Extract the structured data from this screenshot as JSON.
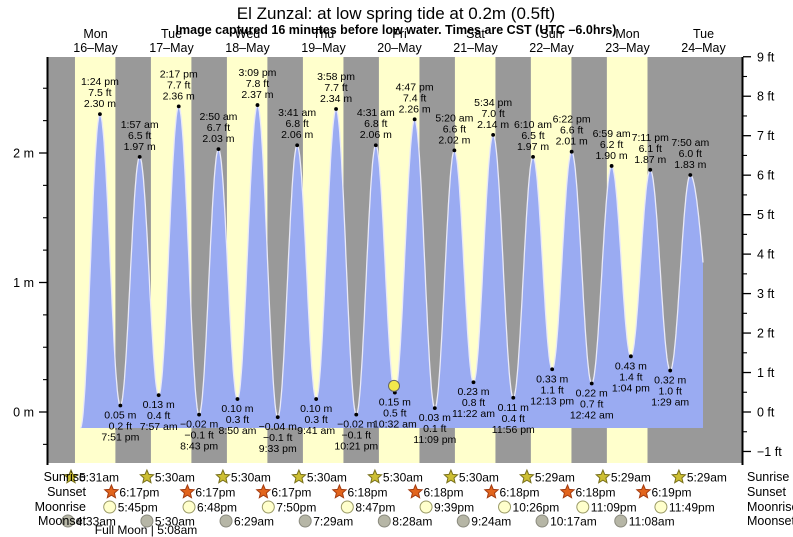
{
  "chart_data": {
    "type": "area",
    "title": "El Zunzal: at low  spring tide at 0.2m (0.5ft)",
    "subtitle": "Image captured 16 minutes before low water. Times are CST (UTC –6.0hrs)",
    "y_left": {
      "unit": "m",
      "major_ticks": [
        0,
        1,
        2
      ],
      "tick_suffix": " m"
    },
    "y_right": {
      "unit": "ft",
      "major_ticks": [
        -1,
        0,
        1,
        2,
        3,
        4,
        5,
        6,
        7,
        8,
        9
      ],
      "tick_suffix": " ft"
    },
    "row_labels": {
      "sunrise": "Sunrise",
      "sunset": "Sunset",
      "moonrise": "Moonrise",
      "moonset": "Moonset"
    },
    "full_moon": {
      "text": "Full Moon | 5:08am"
    },
    "days": [
      {
        "label": "Mon",
        "date": "16–May",
        "sunrise": "5:31am",
        "sunset": "6:17pm",
        "moonrise": "5:45pm",
        "moonset": "4:33am"
      },
      {
        "label": "Tue",
        "date": "17–May",
        "sunrise": "5:30am",
        "sunset": "6:17pm",
        "moonrise": "6:48pm",
        "moonset": "5:30am"
      },
      {
        "label": "Wed",
        "date": "18–May",
        "sunrise": "5:30am",
        "sunset": "6:17pm",
        "moonrise": "7:50pm",
        "moonset": "6:29am"
      },
      {
        "label": "Thu",
        "date": "19–May",
        "sunrise": "5:30am",
        "sunset": "6:18pm",
        "moonrise": "8:47pm",
        "moonset": "7:29am"
      },
      {
        "label": "Fri",
        "date": "20–May",
        "sunrise": "5:30am",
        "sunset": "6:18pm",
        "moonrise": "9:39pm",
        "moonset": "8:28am"
      },
      {
        "label": "Sat",
        "date": "21–May",
        "sunrise": "5:30am",
        "sunset": "6:18pm",
        "moonrise": "10:26pm",
        "moonset": "9:24am"
      },
      {
        "label": "Sun",
        "date": "22–May",
        "sunrise": "5:29am",
        "sunset": "6:18pm",
        "moonrise": "11:09pm",
        "moonset": "10:17am"
      },
      {
        "label": "Mon",
        "date": "23–May",
        "sunrise": "5:29am",
        "sunset": "6:19pm",
        "moonrise": "11:49pm",
        "moonset": "11:08am"
      },
      {
        "label": "Tue",
        "date": "24–May",
        "sunrise": "5:29am"
      }
    ],
    "tide_events": [
      {
        "day": 0,
        "type": "high",
        "time": "1:24 pm",
        "ft": "7.5 ft",
        "m": "2.30 m"
      },
      {
        "day": 0,
        "type": "low",
        "time": "7:51 pm",
        "ft": "0.2 ft",
        "m": "0.05 m"
      },
      {
        "day": 1,
        "type": "high",
        "time": "1:57 am",
        "ft": "6.5 ft",
        "m": "1.97 m"
      },
      {
        "day": 1,
        "type": "low",
        "time": "7:57 am",
        "ft": "0.4 ft",
        "m": "0.13 m"
      },
      {
        "day": 1,
        "type": "high",
        "time": "2:17 pm",
        "ft": "7.7 ft",
        "m": "2.36 m"
      },
      {
        "day": 1,
        "type": "low",
        "time": "8:43 pm",
        "ft": "−0.1 ft",
        "m": "−0.02 m"
      },
      {
        "day": 2,
        "type": "high",
        "time": "2:50 am",
        "ft": "6.7 ft",
        "m": "2.03 m"
      },
      {
        "day": 2,
        "type": "low",
        "time": "8:50 am",
        "ft": "0.3 ft",
        "m": "0.10 m"
      },
      {
        "day": 2,
        "type": "high",
        "time": "3:09 pm",
        "ft": "7.8 ft",
        "m": "2.37 m"
      },
      {
        "day": 2,
        "type": "low",
        "time": "9:33 pm",
        "ft": "−0.1 ft",
        "m": "−0.04 m"
      },
      {
        "day": 3,
        "type": "high",
        "time": "3:41 am",
        "ft": "6.8 ft",
        "m": "2.06 m"
      },
      {
        "day": 3,
        "type": "low",
        "time": "9:41 am",
        "ft": "0.3 ft",
        "m": "0.10 m"
      },
      {
        "day": 3,
        "type": "high",
        "time": "3:58 pm",
        "ft": "7.7 ft",
        "m": "2.34 m"
      },
      {
        "day": 3,
        "type": "low",
        "time": "10:21 pm",
        "ft": "−0.1 ft",
        "m": "−0.02 m"
      },
      {
        "day": 4,
        "type": "high",
        "time": "4:31 am",
        "ft": "6.8 ft",
        "m": "2.06 m"
      },
      {
        "day": 4,
        "type": "low",
        "time": "10:32 am",
        "ft": "0.5 ft",
        "m": "0.15 m"
      },
      {
        "day": 4,
        "type": "high",
        "time": "4:47 pm",
        "ft": "7.4 ft",
        "m": "2.26 m"
      },
      {
        "day": 4,
        "type": "low",
        "time": "11:09 pm",
        "ft": "0.1 ft",
        "m": "0.03 m"
      },
      {
        "day": 5,
        "type": "high",
        "time": "5:20 am",
        "ft": "6.6 ft",
        "m": "2.02 m"
      },
      {
        "day": 5,
        "type": "low",
        "time": "11:22 am",
        "ft": "0.8 ft",
        "m": "0.23 m"
      },
      {
        "day": 5,
        "type": "high",
        "time": "5:34 pm",
        "ft": "7.0 ft",
        "m": "2.14 m"
      },
      {
        "day": 5,
        "type": "low",
        "time": "11:56 pm",
        "ft": "0.4 ft",
        "m": "0.11 m"
      },
      {
        "day": 6,
        "type": "high",
        "time": "6:10 am",
        "ft": "6.5 ft",
        "m": "1.97 m"
      },
      {
        "day": 6,
        "type": "low",
        "time": "12:13 pm",
        "ft": "1.1 ft",
        "m": "0.33 m"
      },
      {
        "day": 6,
        "type": "high",
        "time": "6:22 pm",
        "ft": "6.6 ft",
        "m": "2.01 m"
      },
      {
        "day": 7,
        "type": "low",
        "time": "12:42 am",
        "ft": "0.7 ft",
        "m": "0.22 m"
      },
      {
        "day": 7,
        "type": "high",
        "time": "6:59 am",
        "ft": "6.2 ft",
        "m": "1.90 m"
      },
      {
        "day": 7,
        "type": "low",
        "time": "1:04 pm",
        "ft": "1.4 ft",
        "m": "0.43 m"
      },
      {
        "day": 7,
        "type": "high",
        "time": "7:11 pm",
        "ft": "6.1 ft",
        "m": "1.87 m"
      },
      {
        "day": 8,
        "type": "low",
        "time": "1:29 am",
        "ft": "1.0 ft",
        "m": "0.32 m"
      },
      {
        "day": 8,
        "type": "high",
        "time": "7:50 am",
        "ft": "6.0 ft",
        "m": "1.83 m"
      }
    ],
    "current_time_marker": {
      "day": 4,
      "time": "10:16 am"
    },
    "colors": {
      "night_band": "#999999",
      "day_band": "#ffffcc",
      "tide_fill": "#9aabf2",
      "tide_edge": "#e9e9f7",
      "day_label_red": "#e7342a",
      "marker_yellow": "#f2e84b",
      "sunrise_star": "#cdbf33",
      "sunrise_star_edge": "#79711d",
      "sunset_star": "#e2641c",
      "sunset_star_edge": "#a33b10",
      "moonrise_circle": "#ffffcc",
      "moonrise_circle_edge": "#999966",
      "moonset_circle": "#b6b6a6",
      "moonset_circle_edge": "#8a8a7e"
    }
  }
}
